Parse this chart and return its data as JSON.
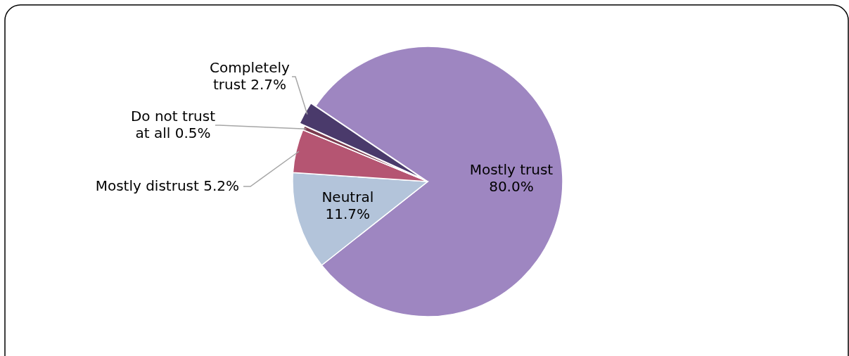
{
  "chart_data": {
    "type": "pie",
    "categories": [
      "Mostly trust",
      "Neutral",
      "Mostly distrust",
      "Do not trust at all",
      "Completely trust"
    ],
    "values": [
      80.0,
      11.7,
      5.2,
      0.5,
      2.7
    ],
    "value_labels": [
      "80.0%",
      "11.7%",
      "5.2%",
      "0.5%",
      "2.7%"
    ],
    "colors": [
      "#9e86c1",
      "#b3c4da",
      "#b55572",
      "#7b3b4f",
      "#4a3a6b"
    ]
  }
}
